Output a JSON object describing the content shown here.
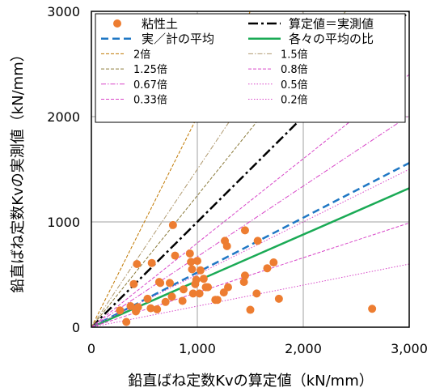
{
  "chart_data": {
    "type": "scatter",
    "xlabel": "鉛直ばね定数Kvの算定値（kN/mm）",
    "ylabel": "鉛直ばね定数Kvの実測値（kN/mm）",
    "xlim": [
      0,
      3000
    ],
    "ylim": [
      0,
      3000
    ],
    "x_ticks": [
      0,
      1000,
      2000,
      3000
    ],
    "x_tick_labels": [
      "0",
      "1,000",
      "2,000",
      "3,000"
    ],
    "y_ticks": [
      0,
      1000,
      2000,
      3000
    ],
    "y_tick_labels": [
      "0",
      "1000",
      "2000",
      "3000"
    ],
    "grid": true,
    "legend_position": "top",
    "scatter_series": {
      "name": "粘性土",
      "color": "#ed7d31",
      "points": [
        [
          270,
          160
        ],
        [
          330,
          50
        ],
        [
          370,
          200
        ],
        [
          400,
          410
        ],
        [
          420,
          150
        ],
        [
          430,
          600
        ],
        [
          440,
          190
        ],
        [
          530,
          270
        ],
        [
          560,
          180
        ],
        [
          570,
          610
        ],
        [
          620,
          170
        ],
        [
          640,
          430
        ],
        [
          650,
          420
        ],
        [
          700,
          240
        ],
        [
          740,
          420
        ],
        [
          760,
          290
        ],
        [
          770,
          970
        ],
        [
          790,
          680
        ],
        [
          860,
          250
        ],
        [
          870,
          360
        ],
        [
          930,
          700
        ],
        [
          940,
          620
        ],
        [
          950,
          550
        ],
        [
          960,
          320
        ],
        [
          980,
          410
        ],
        [
          990,
          450
        ],
        [
          1000,
          630
        ],
        [
          1020,
          320
        ],
        [
          1030,
          540
        ],
        [
          1060,
          460
        ],
        [
          1080,
          380
        ],
        [
          1100,
          380
        ],
        [
          1170,
          260
        ],
        [
          1190,
          260
        ],
        [
          1250,
          330
        ],
        [
          1260,
          820
        ],
        [
          1280,
          770
        ],
        [
          1290,
          380
        ],
        [
          1440,
          430
        ],
        [
          1450,
          490
        ],
        [
          1450,
          920
        ],
        [
          1500,
          165
        ],
        [
          1560,
          320
        ],
        [
          1570,
          820
        ],
        [
          1660,
          560
        ],
        [
          1720,
          615
        ],
        [
          1770,
          270
        ],
        [
          2650,
          175
        ]
      ]
    },
    "lines": [
      {
        "name": "算定値＝実測値",
        "slope": 1.0,
        "color": "#000000",
        "style": "dashdot",
        "width": 2.5
      },
      {
        "name": "実／計の平均",
        "slope": 0.52,
        "color": "#1f77c4",
        "style": "dash",
        "width": 2.5
      },
      {
        "name": "各々の平均の比",
        "slope": 0.44,
        "color": "#1aaa55",
        "style": "solid",
        "width": 2.5
      },
      {
        "name": "2倍",
        "slope": 2.0,
        "color": "#c07800",
        "style": "fine-dash",
        "width": 1
      },
      {
        "name": "1.5倍",
        "slope": 1.5,
        "color": "#b09a70",
        "style": "dashdot-fine",
        "width": 1
      },
      {
        "name": "1.25倍",
        "slope": 1.25,
        "color": "#8a7a3a",
        "style": "fine-dash",
        "width": 1
      },
      {
        "name": "0.8倍",
        "slope": 0.8,
        "color": "#d846c8",
        "style": "fine-dash",
        "width": 1
      },
      {
        "name": "0.67倍",
        "slope": 0.67,
        "color": "#d846c8",
        "style": "dashdot-fine",
        "width": 1
      },
      {
        "name": "0.5倍",
        "slope": 0.5,
        "color": "#d846c8",
        "style": "dot",
        "width": 1
      },
      {
        "name": "0.33倍",
        "slope": 0.33,
        "color": "#d846c8",
        "style": "fine-dash",
        "width": 1
      },
      {
        "name": "0.2倍",
        "slope": 0.2,
        "color": "#d846c8",
        "style": "dot",
        "width": 1
      }
    ]
  }
}
